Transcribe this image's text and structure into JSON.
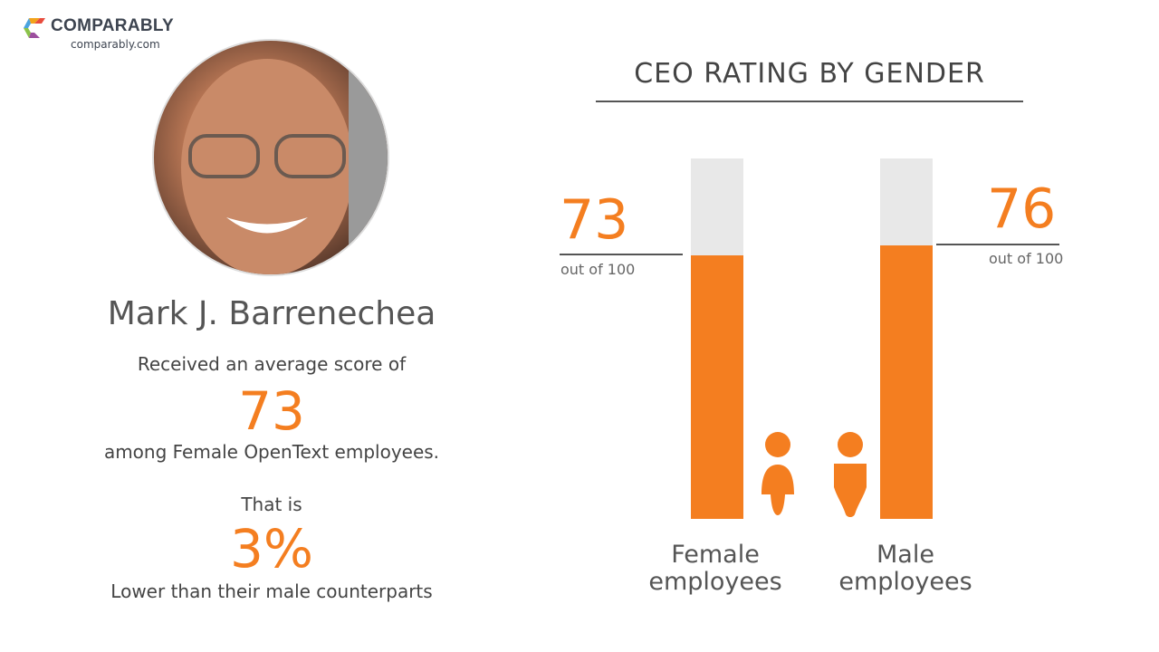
{
  "brand": {
    "name": "COMPARABLY",
    "url": "comparably.com"
  },
  "profile": {
    "name": "Mark J. Barrenechea",
    "line1": "Received an average score of",
    "score": "73",
    "line2": "among Female OpenText employees.",
    "line3": "That is",
    "difference": "3%",
    "line4": "Lower than their male counterparts"
  },
  "colors": {
    "accent": "#f47e20",
    "track": "#e8e8e8"
  },
  "chart_data": {
    "type": "bar",
    "title": "CEO RATING BY GENDER",
    "categories": [
      "Female employees",
      "Male employees"
    ],
    "values": [
      73,
      76
    ],
    "value_labels": [
      "73",
      "76"
    ],
    "suffix": "out of 100",
    "ylim": [
      0,
      100
    ],
    "icons": [
      "female-person-icon",
      "male-person-icon"
    ]
  }
}
